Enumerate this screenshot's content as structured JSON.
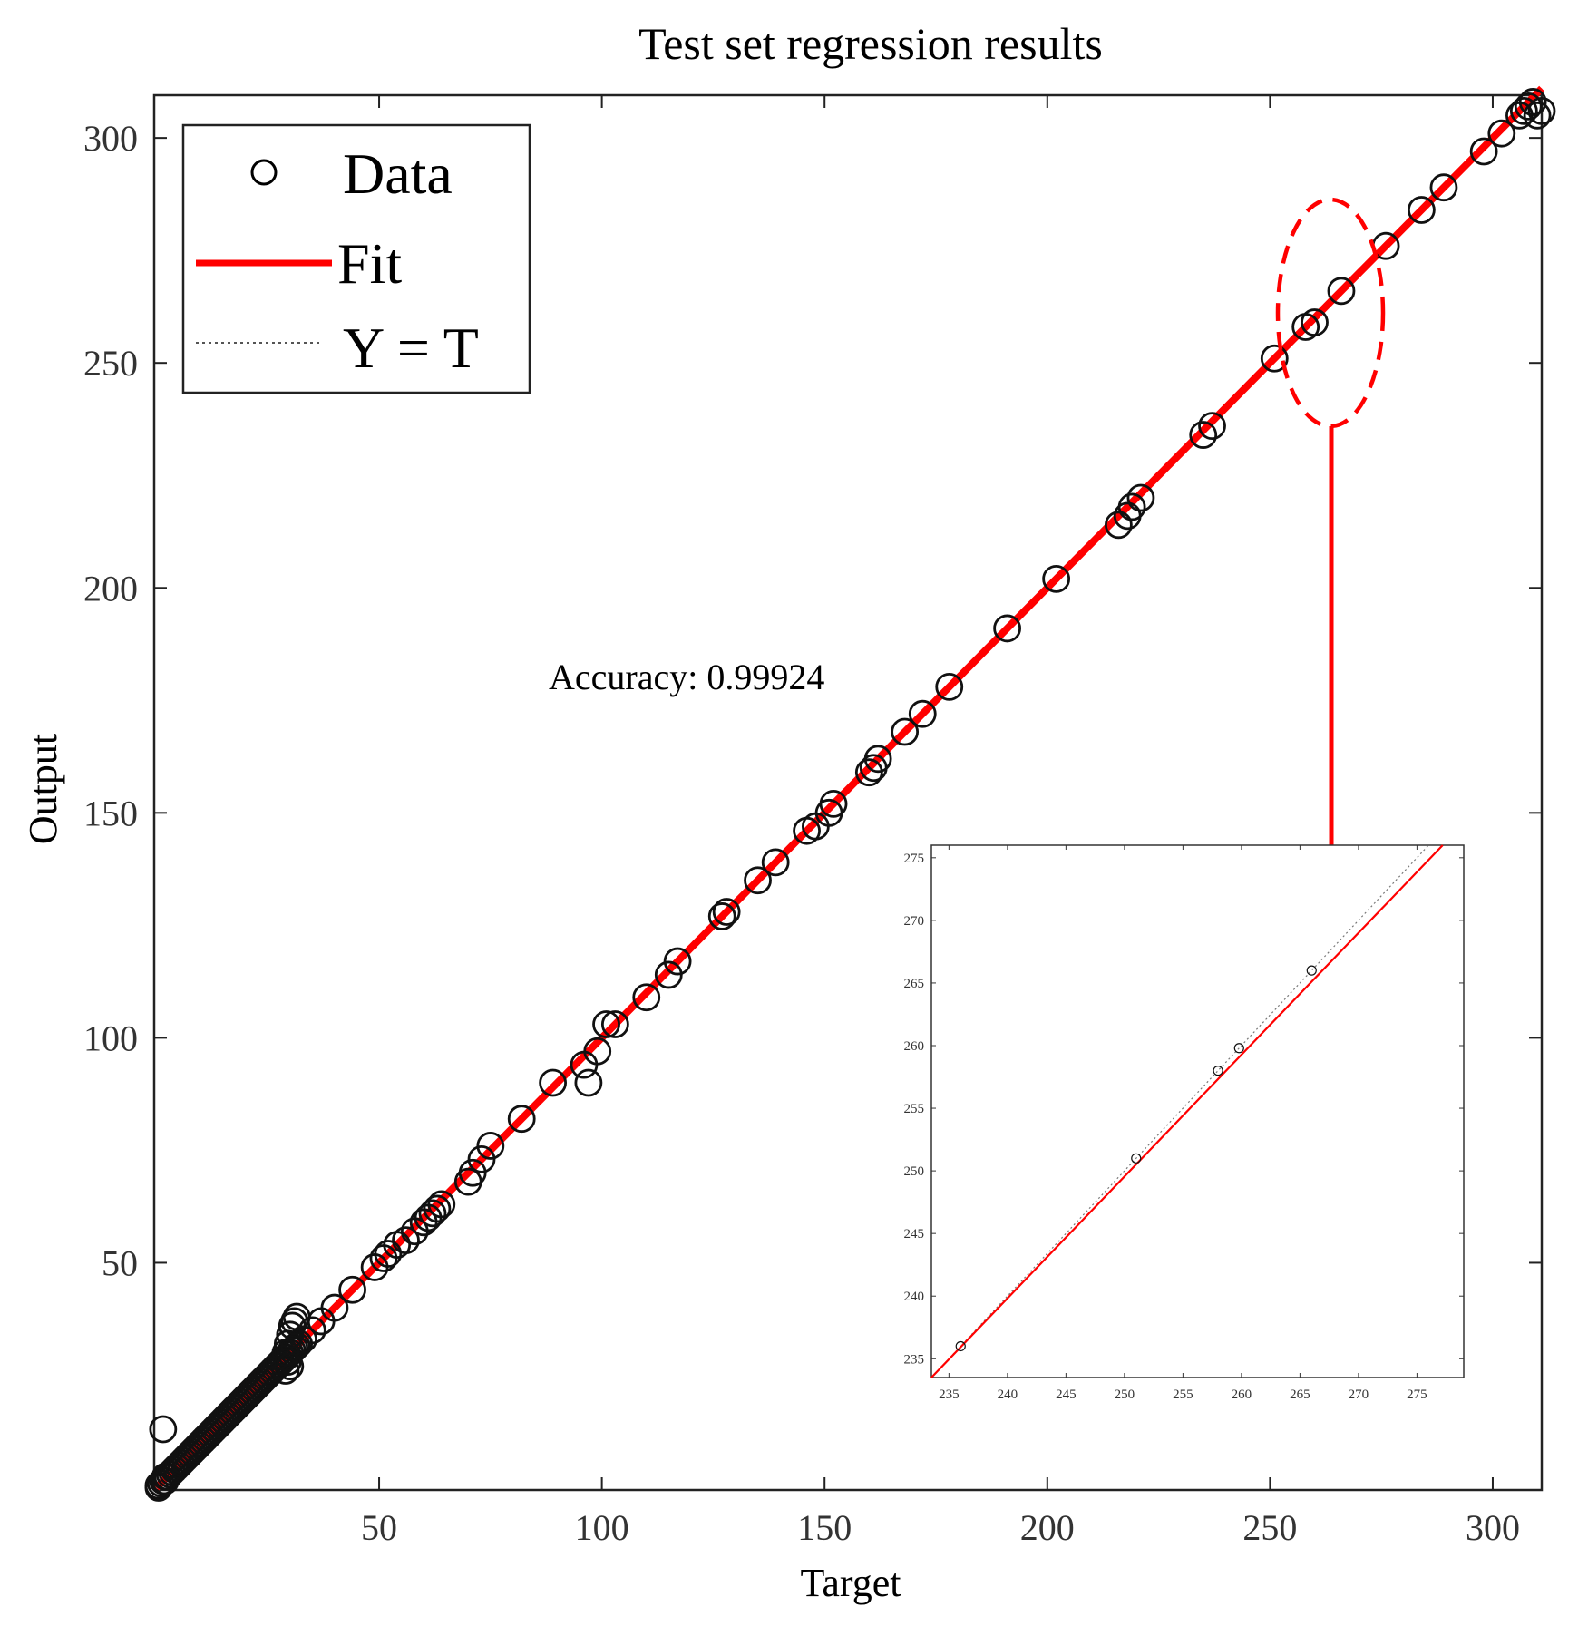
{
  "chart_data": [
    {
      "type": "scatter",
      "title": "Test set regression results",
      "xlabel": "Target",
      "ylabel": "Output",
      "xlim": [
        -0.5,
        311
      ],
      "ylim": [
        -0.5,
        309.5
      ],
      "xticks": [
        50,
        100,
        150,
        200,
        250,
        300
      ],
      "yticks": [
        50,
        100,
        150,
        200,
        250,
        300
      ],
      "legend": {
        "position": "top-left",
        "entries": [
          {
            "label": "Data",
            "style": "circle-marker",
            "color": "#000000"
          },
          {
            "label": "Fit",
            "style": "solid-line",
            "color": "#ff0000"
          },
          {
            "label": "Y = T",
            "style": "dotted-line",
            "color": "#555555"
          }
        ]
      },
      "annotation": "Accuracy: 0.99924",
      "fit_line": {
        "x": [
          0,
          311
        ],
        "y": [
          0,
          311
        ],
        "color": "#ff0000"
      },
      "identity_line": {
        "x": [
          0,
          311
        ],
        "y": [
          0,
          311
        ]
      },
      "series": [
        {
          "name": "Data",
          "x": [
            0.5,
            1,
            1.5,
            2,
            2,
            2.5,
            3,
            3.5,
            4,
            4.5,
            5,
            5.5,
            6,
            6.5,
            7,
            7.5,
            8,
            8.5,
            9,
            9.5,
            10,
            10.5,
            11,
            11.5,
            12,
            12.5,
            13,
            13.5,
            14,
            14.5,
            15,
            15.5,
            16,
            16.5,
            17,
            17.5,
            18,
            18.5,
            19,
            19.5,
            20,
            20.5,
            21,
            21.5,
            22,
            22.5,
            23,
            23.5,
            24,
            24.5,
            25,
            25.5,
            26,
            26.5,
            27,
            27.5,
            28,
            28.5,
            29,
            29.5,
            30,
            30.5,
            31,
            31.5,
            32,
            33,
            0.5,
            1.5,
            29,
            29.5,
            30,
            30.5,
            31,
            31.5,
            29,
            29.5,
            30,
            35,
            37,
            40,
            44,
            49,
            51,
            52,
            54,
            56,
            58,
            60,
            61,
            62,
            63,
            64,
            70,
            71,
            73,
            75,
            82,
            89,
            96,
            97,
            99,
            101,
            103,
            110,
            115,
            117,
            127,
            128,
            135,
            139,
            146,
            148,
            151,
            152,
            160,
            161,
            162,
            168,
            172,
            178,
            191,
            202,
            216,
            218,
            219,
            221,
            235,
            237,
            251,
            258,
            260,
            266,
            276,
            284,
            289,
            298,
            302,
            306,
            307,
            308,
            309,
            310,
            311
          ],
          "y": [
            0.5,
            1,
            1.5,
            1.5,
            2.5,
            2.5,
            3,
            3.5,
            4,
            4.5,
            5,
            5.5,
            6,
            6.5,
            7,
            7.5,
            8,
            8.5,
            9,
            9.5,
            10,
            10.5,
            11,
            11.5,
            12,
            12.5,
            13,
            13.5,
            14,
            14.5,
            15,
            15.5,
            16,
            16.5,
            17,
            17.5,
            18,
            18.5,
            19,
            19.5,
            20,
            20.5,
            21,
            21.5,
            22,
            22.5,
            23,
            23.5,
            24,
            24.5,
            25,
            25.5,
            26,
            26.5,
            27,
            27.5,
            28,
            28.5,
            29,
            29.5,
            30,
            30.5,
            31,
            31.5,
            32,
            33,
            0,
            13,
            30,
            32,
            34,
            36,
            37,
            38,
            26,
            28,
            27,
            35,
            37,
            40,
            44,
            49,
            51,
            52,
            54,
            55,
            57,
            59,
            60,
            61,
            62,
            63,
            68,
            70,
            73,
            76,
            82,
            90,
            94,
            90,
            97,
            103,
            103,
            109,
            114,
            117,
            127,
            128,
            135,
            139,
            146,
            147,
            150,
            152,
            159,
            160,
            162,
            168,
            172,
            178,
            191,
            202,
            214,
            216,
            218,
            220,
            234,
            236,
            251,
            258,
            259,
            266,
            276,
            284,
            289,
            297,
            301,
            305,
            306,
            307,
            308,
            305,
            306
          ]
        }
      ]
    },
    {
      "type": "scatter",
      "title": "",
      "xlabel": "",
      "ylabel": "",
      "xlim": [
        233.5,
        279
      ],
      "ylim": [
        233.5,
        276
      ],
      "xticks": [
        235,
        240,
        245,
        250,
        255,
        260,
        265,
        270,
        275
      ],
      "yticks": [
        235,
        240,
        245,
        250,
        255,
        260,
        265,
        270,
        275
      ],
      "fit_line": {
        "x": [
          233.5,
          277.2
        ],
        "y": [
          233.5,
          276
        ],
        "color": "#ff0000"
      },
      "identity_line": {
        "x": [
          233.5,
          276
        ],
        "y": [
          233.5,
          276
        ]
      },
      "series": [
        {
          "name": "Data",
          "x": [
            236,
            251,
            258,
            259.8,
            266
          ],
          "y": [
            236,
            251,
            258,
            259.8,
            266
          ]
        }
      ]
    }
  ],
  "highlight": {
    "color": "#ff0000",
    "center": [
      261,
      258
    ]
  }
}
